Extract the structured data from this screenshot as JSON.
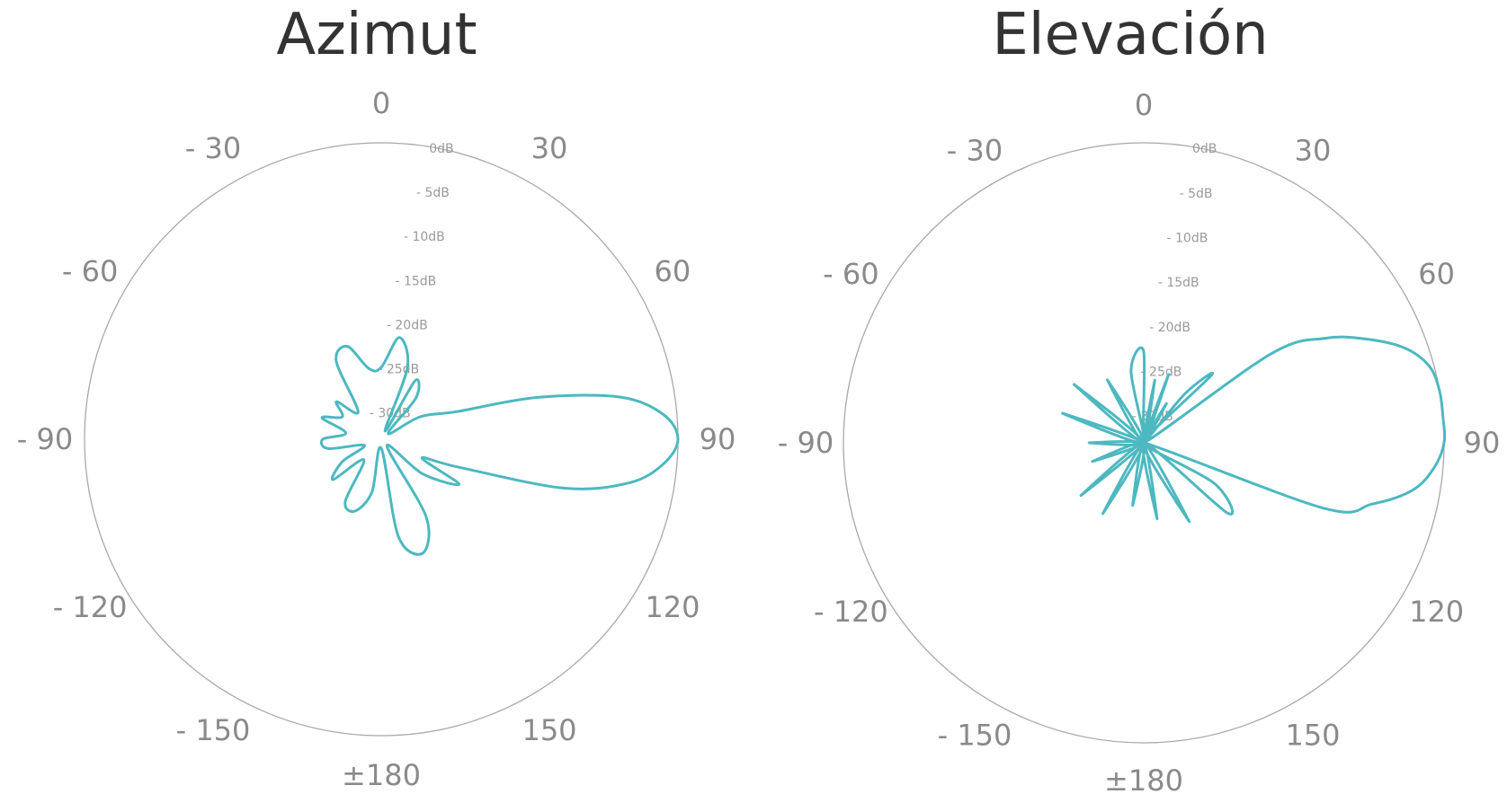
{
  "chart_data": [
    {
      "type": "polar-line",
      "title": "Azimut",
      "angle_labels": [
        "0",
        "30",
        "60",
        "90",
        "120",
        "150",
        "±180",
        "- 150",
        "- 120",
        "- 90",
        "- 60",
        "- 30"
      ],
      "radial_labels": [
        "0dB",
        "- 5dB",
        "- 10dB",
        "- 15dB",
        "- 20dB",
        "- 25dB",
        "- 30dB"
      ],
      "rlim_db": [
        -33,
        0
      ],
      "line_color": "#4db8c0",
      "series": [
        {
          "theta_deg": [
            0,
            10,
            20,
            25,
            30,
            40,
            50,
            60,
            70,
            75,
            80,
            85,
            90,
            95,
            100,
            105,
            110,
            115,
            120,
            130,
            140,
            150,
            160,
            170,
            180,
            -170,
            -160,
            -150,
            -140,
            -130,
            -120,
            -110,
            -100,
            -90,
            -80,
            -70,
            -60,
            -50,
            -40,
            -30,
            -20,
            -10
          ],
          "r_db": [
            -25,
            -21.5,
            -24.5,
            -32,
            -25.5,
            -27,
            -32,
            -28,
            -24,
            -15,
            -6,
            -1.5,
            0,
            -1.5,
            -5,
            -12,
            -24,
            -28,
            -23,
            -27,
            -32,
            -23,
            -19.5,
            -22,
            -32,
            -27,
            -24.5,
            -25,
            -30,
            -26,
            -28,
            -31,
            -27,
            -26.5,
            -29,
            -26,
            -28,
            -26.5,
            -29,
            -23,
            -22,
            -25
          ]
        }
      ]
    },
    {
      "type": "polar-line",
      "title": "Elevación",
      "angle_labels": [
        "0",
        "30",
        "60",
        "90",
        "120",
        "150",
        "±180",
        "- 150",
        "- 120",
        "- 90",
        "- 60",
        "- 30"
      ],
      "radial_labels": [
        "0dB",
        "- 5dB",
        "- 10dB",
        "- 15dB",
        "- 20dB",
        "- 25dB",
        "- 30dB"
      ],
      "rlim_db": [
        -33,
        0
      ],
      "line_color": "#4db8c0",
      "series": [
        {
          "theta_deg": [
            0,
            5,
            10,
            15,
            20,
            25,
            30,
            35,
            40,
            45,
            50,
            55,
            60,
            65,
            70,
            75,
            80,
            85,
            90,
            95,
            100,
            105,
            110,
            115,
            120,
            130,
            140,
            150,
            160,
            170,
            180,
            -170,
            -160,
            -150,
            -140,
            -130,
            -120,
            -110,
            -100,
            -90,
            -80,
            -70,
            -60,
            -50,
            -40,
            -30,
            -20,
            -10
          ],
          "r_db": [
            -23,
            -33,
            -26,
            -33,
            -25,
            -33,
            -28,
            -33,
            -26,
            -22.5,
            -33,
            -16,
            -10,
            -6,
            -2.5,
            -0.5,
            0,
            0,
            0,
            -1,
            -3,
            -7,
            -12,
            -33,
            -24,
            -21,
            -33,
            -23,
            -33,
            -24.5,
            -33,
            -26,
            -33,
            -24,
            -33,
            -24,
            -33,
            -27,
            -33,
            -27,
            -33,
            -23.5,
            -33,
            -23,
            -33,
            -25,
            -33,
            -25
          ]
        }
      ]
    }
  ]
}
